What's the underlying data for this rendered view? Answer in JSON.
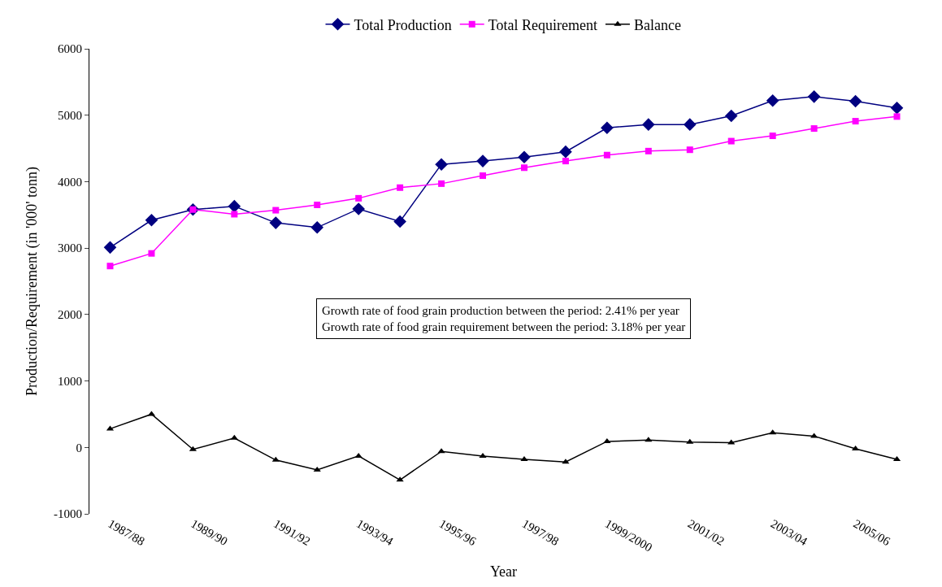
{
  "chart_data": {
    "type": "line",
    "xlabel": "Year",
    "ylabel": "Production/Requirement (in '000' tonn)",
    "categories": [
      "1987/88",
      null,
      "1989/90",
      null,
      "1991/92",
      null,
      "1993/94",
      null,
      "1995/96",
      null,
      "1997/98",
      null,
      "1999/2000",
      null,
      "2001/02",
      null,
      "2003/04",
      null,
      "2005/06",
      null
    ],
    "series": [
      {
        "name": "Total Production",
        "color": "#000080",
        "marker": "diamond",
        "values": [
          3010,
          3420,
          3580,
          3630,
          3380,
          3310,
          3590,
          3400,
          4260,
          4310,
          4370,
          4450,
          4810,
          4860,
          4860,
          4990,
          5220,
          5280,
          5210,
          5110
        ]
      },
      {
        "name": "Total Requirement",
        "color": "#ff00ff",
        "marker": "square",
        "values": [
          2730,
          2920,
          3580,
          3510,
          3570,
          3650,
          3750,
          3910,
          3970,
          4090,
          4210,
          4310,
          4400,
          4460,
          4480,
          4610,
          4690,
          4800,
          4910,
          4980
        ]
      },
      {
        "name": "Balance",
        "color": "#000000",
        "marker": "triangle",
        "values": [
          280,
          500,
          -30,
          140,
          -190,
          -340,
          -130,
          -490,
          -60,
          -130,
          -180,
          -220,
          90,
          110,
          80,
          70,
          220,
          170,
          -20,
          -180
        ]
      }
    ],
    "ylim": [
      -1000,
      6000
    ],
    "yticks": [
      -1000,
      0,
      1000,
      2000,
      3000,
      4000,
      5000,
      6000
    ],
    "legend": "top",
    "annotations": [
      "Growth rate of food grain production between the period: 2.41% per year\nGrowth rate of food grain requirement between the period: 3.18% per year"
    ]
  }
}
